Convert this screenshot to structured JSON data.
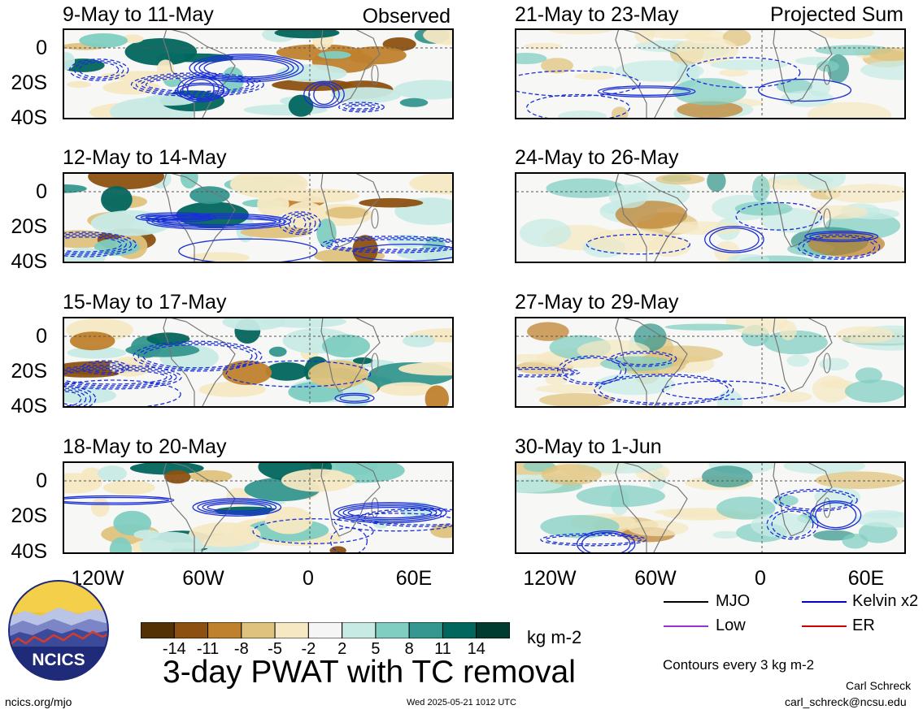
{
  "panels": {
    "left": [
      {
        "title": "9-May to 11-May"
      },
      {
        "title": "12-May to 14-May"
      },
      {
        "title": "15-May to 17-May"
      },
      {
        "title": "18-May to 20-May"
      }
    ],
    "right": [
      {
        "title": "21-May to 23-May"
      },
      {
        "title": "24-May to 26-May"
      },
      {
        "title": "27-May to 29-May"
      },
      {
        "title": "30-May to 1-Jun"
      }
    ]
  },
  "tags": {
    "observed": "Observed",
    "projected": "Projected Sum"
  },
  "y_axis_labels": [
    "0",
    "20S",
    "40S"
  ],
  "x_axis_labels": [
    "120W",
    "60W",
    "0",
    "60E"
  ],
  "colorbar": {
    "ticks": [
      "-14",
      "-11",
      "-8",
      "-5",
      "-2",
      "2",
      "5",
      "8",
      "11",
      "14"
    ],
    "colors": [
      "#543005",
      "#8c5110",
      "#bf812d",
      "#dfc27d",
      "#f6e8c3",
      "#f5f5f5",
      "#c7eae5",
      "#80cdc1",
      "#35978f",
      "#01665e",
      "#003c30"
    ],
    "unit": "kg m-2"
  },
  "legend": [
    {
      "label": "MJO",
      "color": "#000000"
    },
    {
      "label": "Kelvin x2",
      "color": "#0000cc"
    },
    {
      "label": "Low",
      "color": "#9933cc"
    },
    {
      "label": "ER",
      "color": "#cc0000"
    }
  ],
  "contour_note": "Contours every 3 kg m-2",
  "main_title": "3-day PWAT with TC removal",
  "logo_text": "NCICS",
  "footer": {
    "left": "ncics.org/mjo",
    "center": "Wed 2025-05-21 1012 UTC",
    "author": "Carl Schreck",
    "email": "carl_schreck@ncsu.edu"
  }
}
